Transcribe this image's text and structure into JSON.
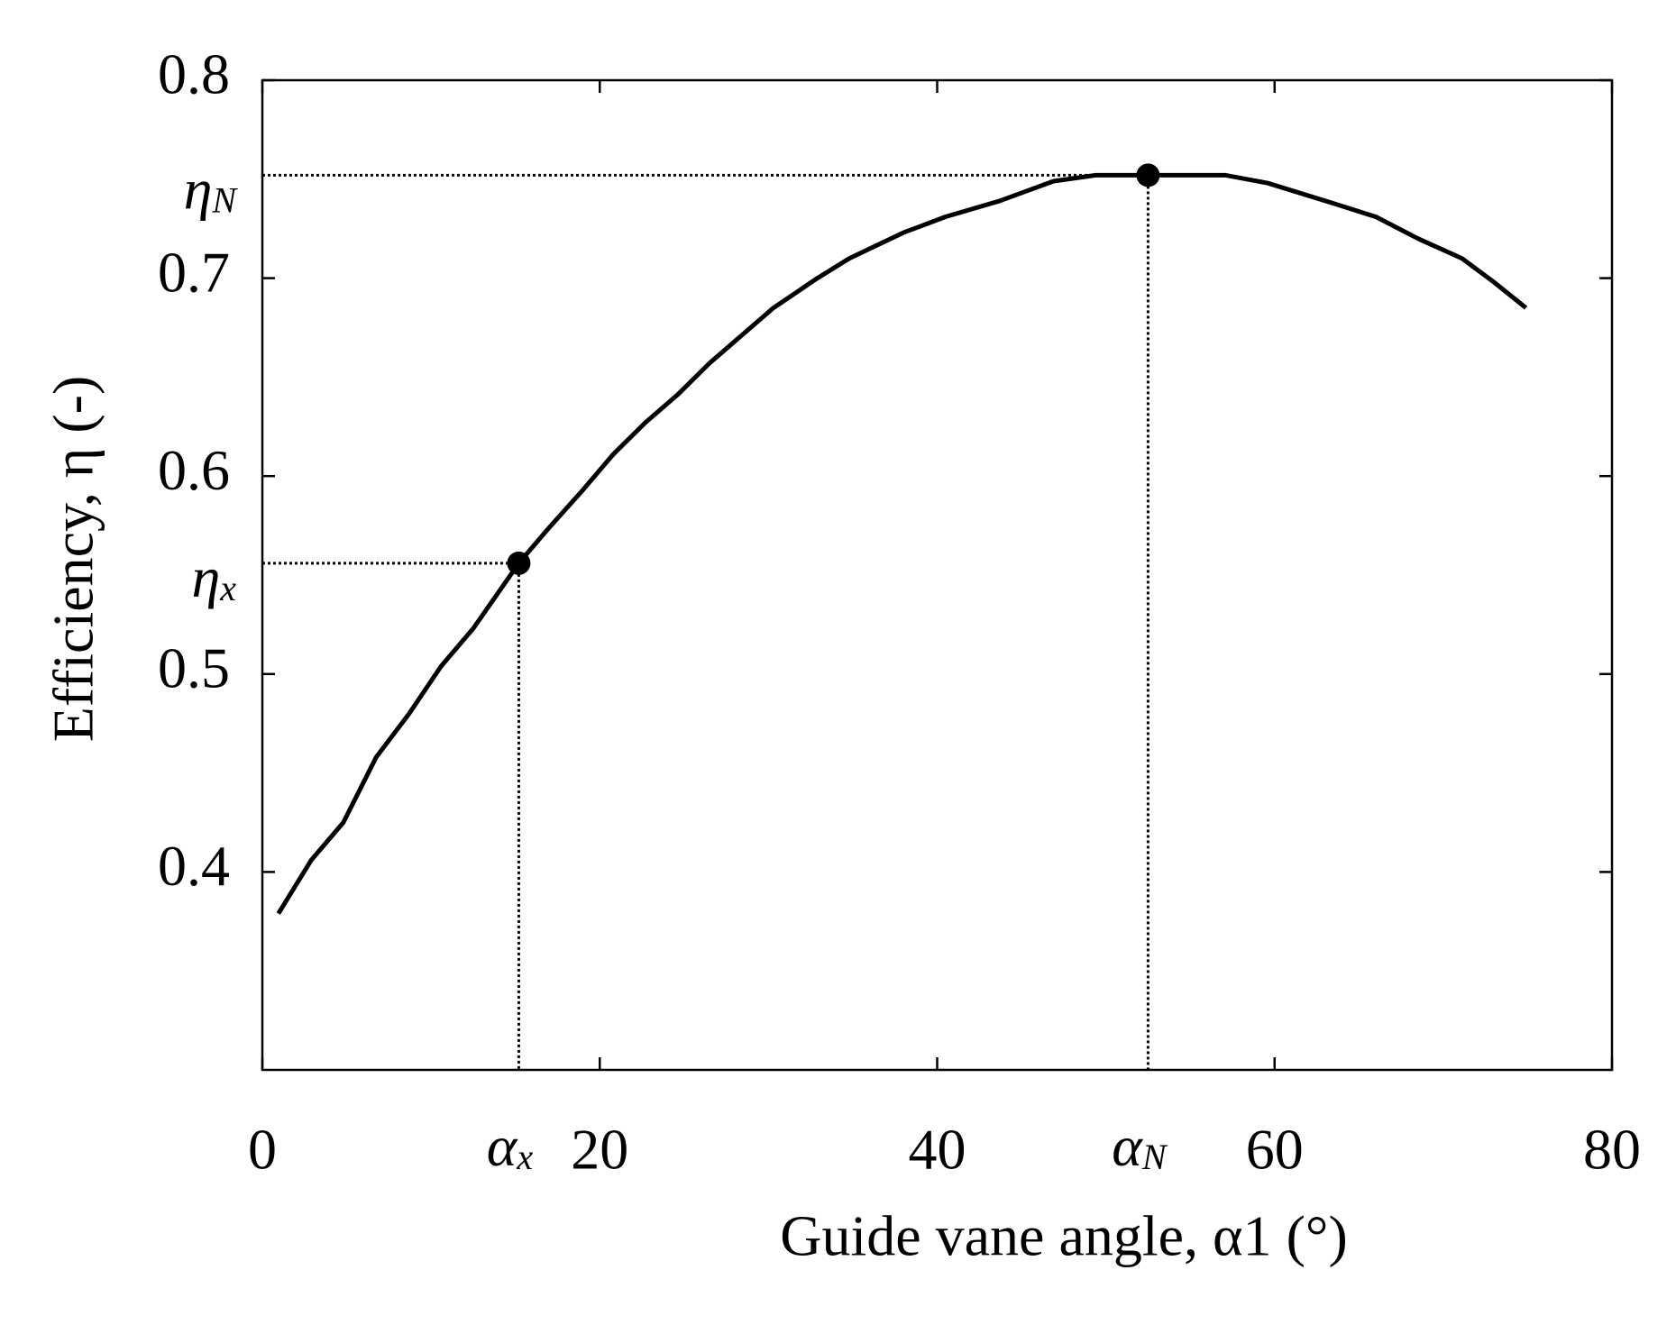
{
  "chart_data": {
    "type": "line",
    "xlabel": "Guide vane angle, α1 (°)",
    "ylabel": "Efficiency, η (-)",
    "x": [
      0.95,
      2.9,
      4.8,
      6.75,
      8.7,
      10.6,
      12.5,
      15.2,
      16.9,
      18.9,
      20.8,
      22.7,
      24.6,
      26.5,
      28.4,
      30.3,
      32.9,
      34.8,
      38,
      40.5,
      43.7,
      46.9,
      49.4,
      52.5,
      57.1,
      59.6,
      63.4,
      66,
      68.5,
      71.1,
      73,
      74.9
    ],
    "series": [
      {
        "color": "#000000",
        "values": [
          0.379,
          0.406,
          0.425,
          0.458,
          0.48,
          0.504,
          0.523,
          0.556,
          0.573,
          0.592,
          0.611,
          0.627,
          0.641,
          0.657,
          0.671,
          0.685,
          0.7,
          0.71,
          0.723,
          0.731,
          0.739,
          0.749,
          0.752,
          0.752,
          0.752,
          0.748,
          0.738,
          0.731,
          0.72,
          0.71,
          0.698,
          0.685
        ]
      }
    ],
    "markers": [
      {
        "x": 15.2,
        "y": 0.556,
        "y_label": {
          "symbol": "η",
          "subscript": "x"
        },
        "x_label": {
          "symbol": "α",
          "subscript": "x"
        }
      },
      {
        "x": 52.5,
        "y": 0.752,
        "y_label": {
          "symbol": "η",
          "subscript": "N"
        },
        "x_label": {
          "symbol": "α",
          "subscript": "N"
        }
      }
    ],
    "xlim": [
      0,
      80
    ],
    "xticks": [
      0,
      20,
      40,
      60,
      80
    ],
    "ylim": [
      0.3,
      0.8
    ],
    "yticks": [
      0.4,
      0.5,
      0.6,
      0.7,
      0.8
    ],
    "grid": false
  }
}
